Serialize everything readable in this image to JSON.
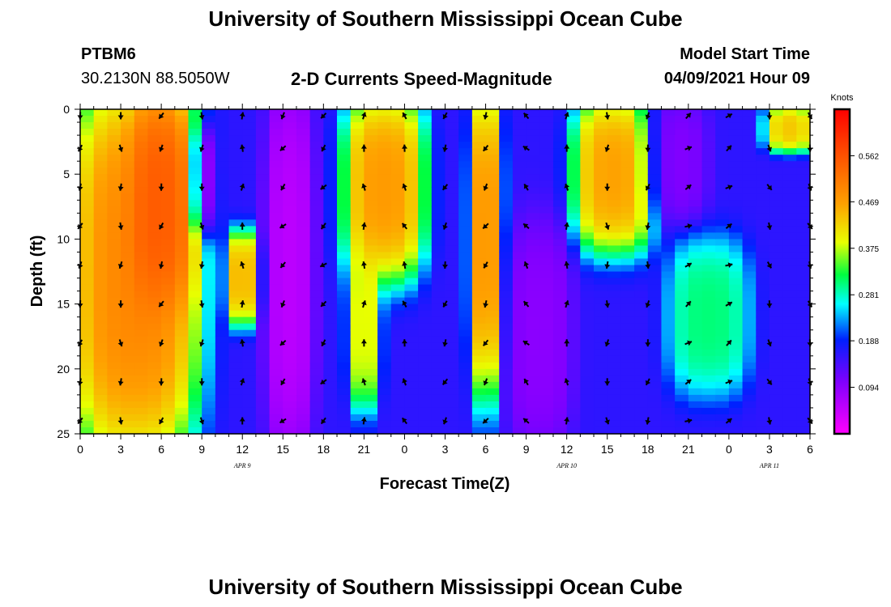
{
  "header": {
    "title": "University of Southern Mississippi Ocean Cube",
    "station_id": "PTBM6",
    "station_coords": "30.2130N  88.5050W",
    "plot_title": "2-D Currents Speed-Magnitude",
    "model_label": "Model Start Time",
    "model_start": "04/09/2021 Hour 09"
  },
  "footer": {
    "title": "University of Southern Mississippi Ocean Cube"
  },
  "chart_data": {
    "type": "heatmap",
    "title": "2-D Currents Speed-Magnitude",
    "xlabel": "Forecast Time(Z)",
    "ylabel": "Depth (ft)",
    "x_ticks": [
      "0",
      "3",
      "6",
      "9",
      "12",
      "15",
      "18",
      "21",
      "0",
      "3",
      "6",
      "9",
      "12",
      "15",
      "18",
      "21",
      "0",
      "3",
      "6"
    ],
    "x_range_hours": [
      0,
      54
    ],
    "date_labels": [
      {
        "text": "APR 9",
        "hour": 12
      },
      {
        "text": "APR 10",
        "hour": 36
      },
      {
        "text": "APR 11",
        "hour": 51
      }
    ],
    "y_ticks": [
      "0",
      "5",
      "10",
      "15",
      "20",
      "25"
    ],
    "ylim": [
      0,
      25
    ],
    "colorbar": {
      "unit": "Knots",
      "ticks": [
        "0.562",
        "0.469",
        "0.375",
        "0.281",
        "0.188",
        "0.094"
      ],
      "tick_values": [
        0.562,
        0.469,
        0.375,
        0.281,
        0.188,
        0.094
      ],
      "range": [
        0,
        0.656
      ]
    },
    "grid": {
      "time_step_hours": 1,
      "depth_step_ft": 0.5
    },
    "colors": {
      "frame": "#000000",
      "arrow": "#000000"
    },
    "speed_features": [
      {
        "hours": [
          0,
          8
        ],
        "depths": [
          0,
          25
        ],
        "peak": 0.58,
        "shape": "column"
      },
      {
        "hours": [
          4,
          8
        ],
        "depths": [
          0,
          14
        ],
        "peak": 0.62
      },
      {
        "hours": [
          8.5,
          10
        ],
        "depths": [
          2,
          9
        ],
        "peak": 0.05,
        "note": "low speed pocket"
      },
      {
        "hours": [
          11,
          13
        ],
        "depths": [
          10,
          16
        ],
        "peak": 0.52
      },
      {
        "hours": [
          14,
          17
        ],
        "depths": [
          0,
          25
        ],
        "peak": 0.03,
        "note": "slack band"
      },
      {
        "hours": [
          20,
          25
        ],
        "depths": [
          0,
          12
        ],
        "peak": 0.55
      },
      {
        "hours": [
          20,
          22
        ],
        "depths": [
          12,
          22
        ],
        "peak": 0.45
      },
      {
        "hours": [
          29,
          31
        ],
        "depths": [
          0,
          20
        ],
        "peak": 0.56
      },
      {
        "hours": [
          32,
          36
        ],
        "depths": [
          10,
          25
        ],
        "peak": 0.08
      },
      {
        "hours": [
          37,
          42
        ],
        "depths": [
          0,
          10
        ],
        "peak": 0.54
      },
      {
        "hours": [
          42,
          46
        ],
        "depths": [
          0,
          8
        ],
        "peak": 0.09
      },
      {
        "hours": [
          44,
          49
        ],
        "depths": [
          11,
          21
        ],
        "peak": 0.34
      },
      {
        "hours": [
          51,
          54
        ],
        "depths": [
          0,
          3
        ],
        "peak": 0.5
      }
    ],
    "arrow_sample": {
      "hours": [
        0,
        3,
        6,
        9,
        12,
        15,
        18,
        21,
        24,
        27,
        30,
        33,
        36,
        39,
        42,
        45,
        48,
        51,
        54
      ],
      "depths_ft": [
        0.5,
        3,
        6,
        9,
        12,
        15,
        18,
        21,
        24
      ],
      "direction_deg_by_column": [
        200,
        180,
        200,
        180,
        0,
        220,
        225,
        0,
        340,
        200,
        210,
        320,
        0,
        180,
        190,
        60,
        60,
        160,
        160
      ]
    }
  }
}
